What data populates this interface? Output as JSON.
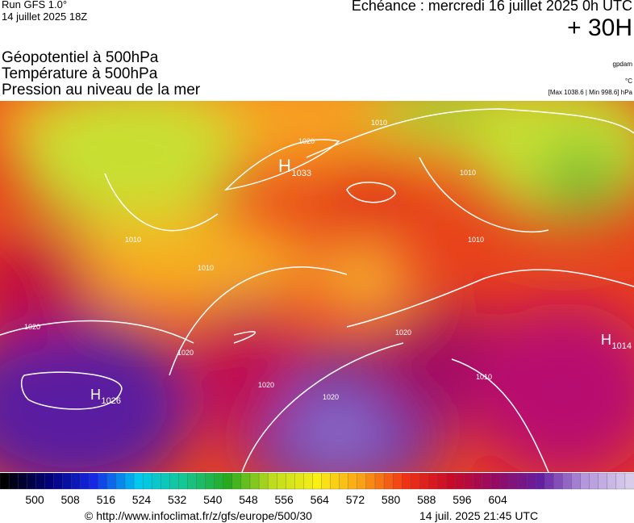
{
  "header": {
    "run": "Run GFS 1.0°",
    "run_date": "14 juillet 2025 18Z",
    "valid": "Echéance : mercredi 16 juillet 2025 0h UTC",
    "lead": "+ 30H",
    "fields": [
      "Géopotentiel à 500hPa",
      "Température à 500hPa",
      "Pression au niveau de la mer"
    ],
    "units": [
      "gpdam",
      "°C",
      "[Max 1038.6 | Min 998.6] hPa"
    ]
  },
  "map": {
    "highs": [
      {
        "letter": "H",
        "value": "1033"
      },
      {
        "letter": "H",
        "value": "1026"
      },
      {
        "letter": "H",
        "value": "1014"
      }
    ],
    "isobar_labels": [
      "1010",
      "1020",
      "1010",
      "1010",
      "1010",
      "1020",
      "1020",
      "1020",
      "1020",
      "1010",
      "1010",
      "1020"
    ]
  },
  "colorbar": {
    "labels": [
      500,
      508,
      516,
      524,
      532,
      540,
      548,
      556,
      564,
      572,
      580,
      588,
      596,
      604
    ]
  },
  "footer": {
    "url": "© http://www.infoclimat.fr/z/gfs/europe/500/30",
    "time": "14 juil. 2025 21:45 UTC"
  }
}
